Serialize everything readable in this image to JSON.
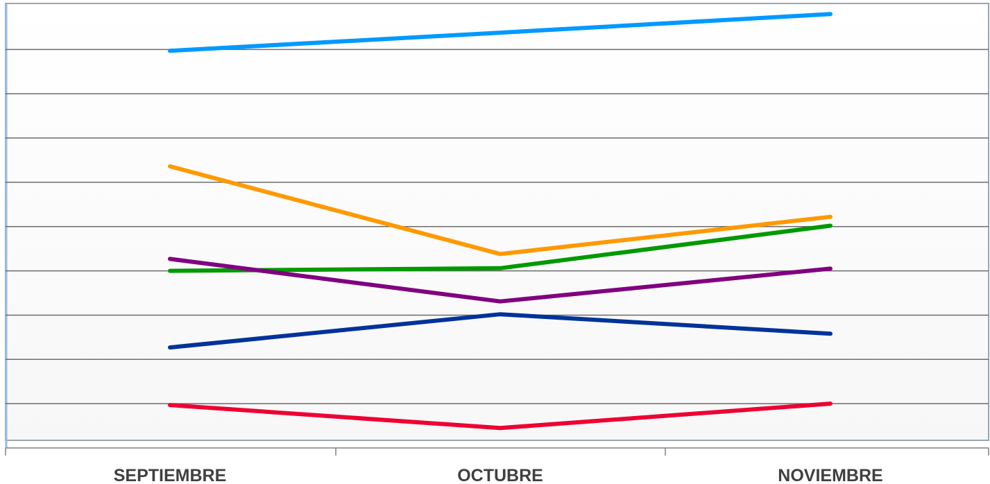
{
  "chart_data": {
    "type": "line",
    "title": "",
    "xlabel": "",
    "ylabel": "",
    "categories": [
      "SEPTIEMBRE",
      "OCTUBRE",
      "NOVIEMBRE"
    ],
    "ylim": [
      0,
      10
    ],
    "gridlines": 9,
    "grid": true,
    "legend": "none",
    "series": [
      {
        "color": "#0099ff",
        "values": [
          8.97,
          9.38,
          9.8
        ]
      },
      {
        "color": "#ff9900",
        "values": [
          6.36,
          4.38,
          5.22
        ]
      },
      {
        "color": "#009900",
        "values": [
          4.0,
          4.06,
          5.02
        ]
      },
      {
        "color": "#800080",
        "values": [
          4.27,
          3.31,
          4.05
        ]
      },
      {
        "color": "#003399",
        "values": [
          2.27,
          3.02,
          2.58
        ]
      },
      {
        "color": "#ee0033",
        "values": [
          0.97,
          0.45,
          1.0
        ]
      }
    ]
  }
}
